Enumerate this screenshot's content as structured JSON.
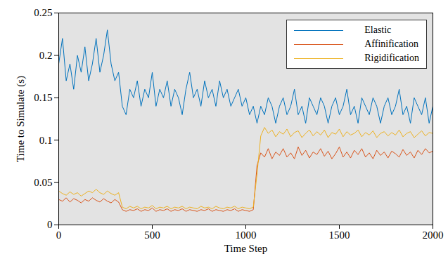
{
  "chart_data": {
    "type": "line",
    "x_label": "Time Step",
    "y_label": "Time to Simulate (s)",
    "xlim": [
      0,
      2000
    ],
    "xticks": [
      0,
      500,
      1000,
      1500,
      2000
    ],
    "ylim": [
      0,
      0.25
    ],
    "yticks": [
      0,
      0.05,
      0.1,
      0.15,
      0.2,
      0.25
    ],
    "grid": false,
    "legend": "upper right",
    "x": [
      0,
      20,
      40,
      60,
      80,
      100,
      120,
      140,
      160,
      180,
      200,
      220,
      240,
      260,
      280,
      300,
      320,
      340,
      360,
      380,
      400,
      420,
      440,
      460,
      480,
      500,
      520,
      540,
      560,
      580,
      600,
      620,
      640,
      660,
      680,
      700,
      720,
      740,
      760,
      780,
      800,
      820,
      840,
      860,
      880,
      900,
      920,
      940,
      960,
      980,
      1000,
      1020,
      1040,
      1060,
      1080,
      1100,
      1120,
      1140,
      1160,
      1180,
      1200,
      1220,
      1240,
      1260,
      1280,
      1300,
      1320,
      1340,
      1360,
      1380,
      1400,
      1420,
      1440,
      1460,
      1480,
      1500,
      1520,
      1540,
      1560,
      1580,
      1600,
      1620,
      1640,
      1660,
      1680,
      1700,
      1720,
      1740,
      1760,
      1780,
      1800,
      1820,
      1840,
      1860,
      1880,
      1900,
      1920,
      1940,
      1960,
      1980,
      2000
    ],
    "series": [
      {
        "name": "Elastic",
        "color": "#0072BD",
        "values": [
          0.19,
          0.22,
          0.17,
          0.19,
          0.16,
          0.2,
          0.18,
          0.21,
          0.17,
          0.19,
          0.22,
          0.18,
          0.2,
          0.23,
          0.19,
          0.17,
          0.18,
          0.14,
          0.13,
          0.16,
          0.15,
          0.17,
          0.14,
          0.16,
          0.15,
          0.18,
          0.14,
          0.16,
          0.15,
          0.17,
          0.14,
          0.16,
          0.15,
          0.13,
          0.16,
          0.18,
          0.15,
          0.16,
          0.14,
          0.17,
          0.15,
          0.16,
          0.14,
          0.17,
          0.15,
          0.16,
          0.14,
          0.15,
          0.16,
          0.14,
          0.15,
          0.13,
          0.14,
          0.12,
          0.14,
          0.13,
          0.15,
          0.14,
          0.12,
          0.14,
          0.15,
          0.13,
          0.14,
          0.16,
          0.13,
          0.14,
          0.12,
          0.15,
          0.14,
          0.13,
          0.15,
          0.14,
          0.12,
          0.14,
          0.15,
          0.13,
          0.14,
          0.16,
          0.13,
          0.14,
          0.12,
          0.15,
          0.14,
          0.13,
          0.15,
          0.14,
          0.12,
          0.14,
          0.15,
          0.13,
          0.14,
          0.16,
          0.13,
          0.14,
          0.12,
          0.15,
          0.14,
          0.13,
          0.15,
          0.12,
          0.14
        ]
      },
      {
        "name": "Affinification",
        "color": "#D95319",
        "values": [
          0.03,
          0.028,
          0.032,
          0.027,
          0.031,
          0.029,
          0.026,
          0.03,
          0.028,
          0.032,
          0.029,
          0.027,
          0.031,
          0.028,
          0.026,
          0.03,
          0.027,
          0.018,
          0.016,
          0.018,
          0.017,
          0.019,
          0.016,
          0.018,
          0.017,
          0.02,
          0.016,
          0.018,
          0.017,
          0.019,
          0.016,
          0.018,
          0.017,
          0.019,
          0.016,
          0.018,
          0.017,
          0.016,
          0.018,
          0.017,
          0.019,
          0.016,
          0.018,
          0.017,
          0.016,
          0.018,
          0.017,
          0.019,
          0.016,
          0.018,
          0.017,
          0.016,
          0.018,
          0.07,
          0.085,
          0.08,
          0.09,
          0.078,
          0.086,
          0.082,
          0.09,
          0.08,
          0.085,
          0.078,
          0.092,
          0.082,
          0.088,
          0.079,
          0.086,
          0.083,
          0.09,
          0.081,
          0.087,
          0.078,
          0.084,
          0.092,
          0.08,
          0.086,
          0.079,
          0.088,
          0.083,
          0.09,
          0.08,
          0.085,
          0.078,
          0.088,
          0.082,
          0.086,
          0.079,
          0.087,
          0.084,
          0.08,
          0.089,
          0.082,
          0.086,
          0.079,
          0.088,
          0.083,
          0.09,
          0.085,
          0.087
        ]
      },
      {
        "name": "Rigidification",
        "color": "#EDB120",
        "values": [
          0.04,
          0.037,
          0.035,
          0.039,
          0.036,
          0.038,
          0.034,
          0.037,
          0.04,
          0.038,
          0.042,
          0.038,
          0.036,
          0.04,
          0.037,
          0.035,
          0.038,
          0.021,
          0.019,
          0.022,
          0.02,
          0.022,
          0.019,
          0.021,
          0.02,
          0.023,
          0.019,
          0.021,
          0.02,
          0.022,
          0.019,
          0.021,
          0.02,
          0.022,
          0.019,
          0.021,
          0.02,
          0.019,
          0.022,
          0.02,
          0.021,
          0.019,
          0.022,
          0.02,
          0.019,
          0.021,
          0.02,
          0.022,
          0.019,
          0.021,
          0.02,
          0.019,
          0.021,
          0.06,
          0.105,
          0.115,
          0.108,
          0.112,
          0.104,
          0.11,
          0.107,
          0.113,
          0.104,
          0.109,
          0.111,
          0.103,
          0.108,
          0.112,
          0.105,
          0.11,
          0.106,
          0.112,
          0.103,
          0.109,
          0.107,
          0.113,
          0.104,
          0.11,
          0.106,
          0.108,
          0.112,
          0.104,
          0.109,
          0.106,
          0.111,
          0.103,
          0.108,
          0.11,
          0.105,
          0.109,
          0.106,
          0.112,
          0.104,
          0.108,
          0.11,
          0.103,
          0.107,
          0.111,
          0.105,
          0.109,
          0.108
        ]
      }
    ]
  }
}
